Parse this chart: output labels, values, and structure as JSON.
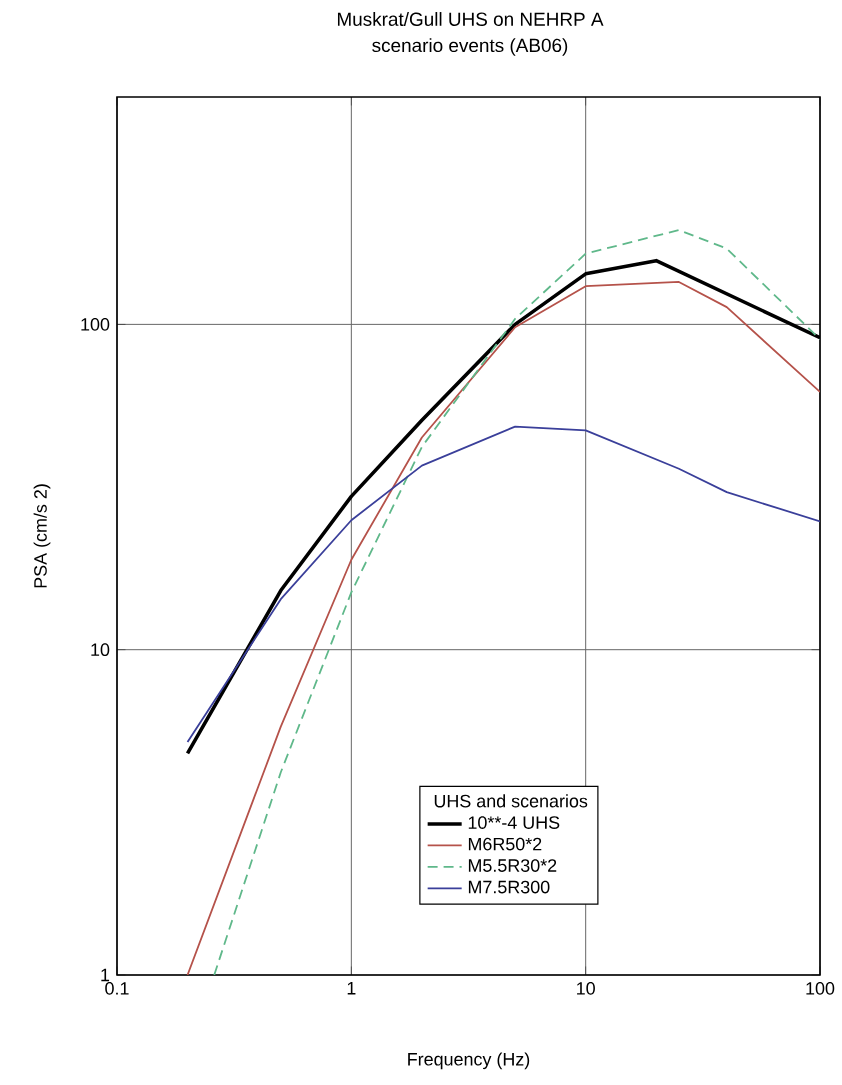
{
  "chart_data": {
    "type": "line",
    "title": "Muskrat/Gull UHS on NEHRP A",
    "subtitle": "scenario events (AB06)",
    "xlabel": "Frequency (Hz)",
    "ylabel": "PSA (cm/s  2)",
    "legend_title": "UHS and scenarios",
    "log": "xy",
    "grid": true,
    "legend": "bottom",
    "xlim": [
      0.1,
      100
    ],
    "ylim": [
      1,
      500
    ],
    "xticks": [
      0.1,
      1,
      10,
      100
    ],
    "yticks": [
      1,
      10,
      100
    ],
    "series": [
      {
        "name": "10**-4 UHS",
        "color": "#000000",
        "x": [
          0.2,
          0.5,
          1,
          2,
          5,
          10,
          20,
          100
        ],
        "values": [
          4.8,
          15.2,
          29.6,
          50.7,
          100,
          143,
          157,
          91
        ]
      },
      {
        "name": "M6R50*2",
        "color": "#b5524a",
        "x": [
          0.2,
          0.5,
          1,
          2,
          5,
          10,
          25,
          40,
          100
        ],
        "values": [
          1.0,
          5.8,
          18.9,
          44.9,
          98,
          131,
          135,
          113,
          62
        ]
      },
      {
        "name": "M5.5R30*2",
        "color": "#5fb88a",
        "line_style": "dashed",
        "x": [
          0.26,
          0.5,
          1,
          2,
          5,
          10,
          25,
          40,
          100
        ],
        "values": [
          1.0,
          4.2,
          15,
          42,
          104,
          165,
          195,
          171,
          90
        ]
      },
      {
        "name": "M7.5R300",
        "color": "#3a3f9a",
        "x": [
          0.2,
          0.5,
          1,
          2,
          5,
          10,
          25,
          40,
          100
        ],
        "values": [
          5.2,
          14.3,
          25,
          36.8,
          48.5,
          47.2,
          36,
          30.5,
          24.8
        ]
      }
    ]
  }
}
